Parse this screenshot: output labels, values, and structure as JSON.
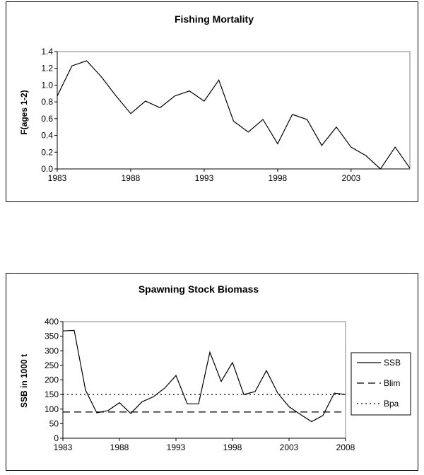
{
  "chart_data": [
    {
      "type": "line",
      "title": "Fishing Mortality",
      "xlabel": "",
      "ylabel": "F(ages 1-2)",
      "xlim": [
        1983,
        2007
      ],
      "ylim": [
        0,
        1.4
      ],
      "yticks": [
        0.0,
        0.2,
        0.4,
        0.6,
        0.8,
        1.0,
        1.2,
        1.4
      ],
      "ytick_labels": [
        "0.0",
        "0.2",
        "0.4",
        "0.6",
        "0.8",
        "1.0",
        "1.2",
        "1.4"
      ],
      "xticks": [
        1983,
        1988,
        1993,
        1998,
        2003
      ],
      "xtick_labels": [
        "1983",
        "1988",
        "1993",
        "1998",
        "2003"
      ],
      "grid": false,
      "series": [
        {
          "name": "F",
          "x": [
            1983,
            1984,
            1985,
            1986,
            1987,
            1988,
            1989,
            1990,
            1991,
            1992,
            1993,
            1994,
            1995,
            1996,
            1997,
            1998,
            1999,
            2000,
            2001,
            2002,
            2003,
            2004,
            2005,
            2006,
            2007
          ],
          "values": [
            0.87,
            1.23,
            1.29,
            1.1,
            0.87,
            0.66,
            0.81,
            0.73,
            0.87,
            0.93,
            0.81,
            1.06,
            0.57,
            0.44,
            0.59,
            0.3,
            0.65,
            0.59,
            0.28,
            0.5,
            0.26,
            0.16,
            0.0,
            0.26,
            0.01
          ]
        }
      ]
    },
    {
      "type": "line",
      "title": "Spawning Stock Biomass",
      "xlabel": "",
      "ylabel": "SSB in 1000 t",
      "xlim": [
        1983,
        2008
      ],
      "ylim": [
        0,
        400
      ],
      "yticks": [
        0,
        50,
        100,
        150,
        200,
        250,
        300,
        350,
        400
      ],
      "ytick_labels": [
        "0",
        "50",
        "100",
        "150",
        "200",
        "250",
        "300",
        "350",
        "400"
      ],
      "xticks": [
        1983,
        1988,
        1993,
        1998,
        2003,
        2008
      ],
      "xtick_labels": [
        "1983",
        "1988",
        "1993",
        "1998",
        "2003",
        "2008"
      ],
      "grid": false,
      "legend": "right",
      "series": [
        {
          "name": "SSB",
          "style": "solid",
          "x": [
            1983,
            1984,
            1985,
            1986,
            1987,
            1988,
            1989,
            1990,
            1991,
            1992,
            1993,
            1994,
            1995,
            1996,
            1997,
            1998,
            1999,
            2000,
            2001,
            2002,
            2003,
            2004,
            2005,
            2006,
            2007,
            2008
          ],
          "values": [
            368,
            370,
            165,
            87,
            95,
            122,
            85,
            125,
            142,
            172,
            215,
            118,
            118,
            295,
            195,
            260,
            150,
            160,
            232,
            155,
            108,
            82,
            57,
            78,
            155,
            150
          ]
        },
        {
          "name": "Blim",
          "style": "dashed",
          "x": [
            1983,
            2008
          ],
          "values": [
            90,
            90
          ]
        },
        {
          "name": "Bpa",
          "style": "dotted",
          "x": [
            1983,
            2008
          ],
          "values": [
            150,
            150
          ]
        }
      ]
    }
  ]
}
